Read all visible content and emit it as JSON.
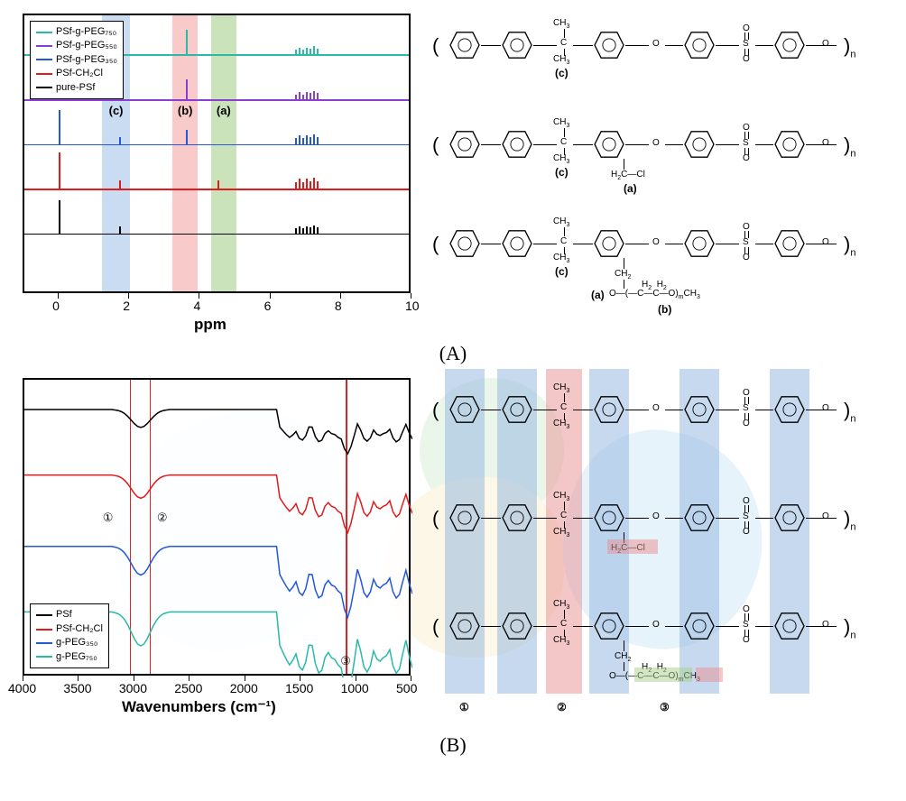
{
  "panelA": {
    "label": "(A)",
    "nmr": {
      "type": "nmr-spectra",
      "xlabel": "ppm",
      "xlim": [
        -1,
        10
      ],
      "xticks": [
        0,
        2,
        4,
        6,
        8,
        10
      ],
      "plot_bg": "#ffffff",
      "border_color": "#000000",
      "bands": [
        {
          "id": "a",
          "label": "(a)",
          "x_from": 4.3,
          "x_to": 5.0,
          "color": "#a8d08d"
        },
        {
          "id": "b",
          "label": "(b)",
          "x_from": 3.2,
          "x_to": 3.9,
          "color": "#f4a6a6"
        },
        {
          "id": "c",
          "label": "(c)",
          "x_from": 1.2,
          "x_to": 2.0,
          "color": "#a6c4e8"
        }
      ],
      "series": [
        {
          "name": "PSf-g-PEG₇₅₀",
          "color": "#2bb9a8",
          "baseline_y": 0.86,
          "peaks": [
            {
              "x": 7.2,
              "h": 0.03
            },
            {
              "x": 7.0,
              "h": 0.025
            },
            {
              "x": 6.8,
              "h": 0.025
            },
            {
              "x": 3.6,
              "h": 0.09
            },
            {
              "x": 1.7,
              "h": 0.02
            },
            {
              "x": 0.0,
              "h": 0.12
            }
          ]
        },
        {
          "name": "PSf-g-PEG₅₅₀",
          "color": "#8b3fd1",
          "baseline_y": 0.7,
          "peaks": [
            {
              "x": 7.2,
              "h": 0.03
            },
            {
              "x": 7.0,
              "h": 0.025
            },
            {
              "x": 6.8,
              "h": 0.025
            },
            {
              "x": 3.6,
              "h": 0.07
            },
            {
              "x": 1.7,
              "h": 0.02
            },
            {
              "x": 0.0,
              "h": 0.12
            }
          ]
        },
        {
          "name": "PSf-g-PEG₃₅₀",
          "color": "#2458d6",
          "baseline_y": 0.54,
          "peaks": [
            {
              "x": 7.2,
              "h": 0.035
            },
            {
              "x": 7.0,
              "h": 0.03
            },
            {
              "x": 6.8,
              "h": 0.03
            },
            {
              "x": 3.6,
              "h": 0.05
            },
            {
              "x": 1.7,
              "h": 0.025
            },
            {
              "x": 0.0,
              "h": 0.12
            }
          ]
        },
        {
          "name": "PSf-CH₂Cl",
          "color": "#e01b1b",
          "baseline_y": 0.38,
          "peaks": [
            {
              "x": 7.2,
              "h": 0.04
            },
            {
              "x": 7.0,
              "h": 0.035
            },
            {
              "x": 6.8,
              "h": 0.035
            },
            {
              "x": 4.5,
              "h": 0.03
            },
            {
              "x": 1.7,
              "h": 0.03
            },
            {
              "x": 0.0,
              "h": 0.13
            }
          ]
        },
        {
          "name": "pure-PSf",
          "color": "#000000",
          "baseline_y": 0.22,
          "peaks": [
            {
              "x": 7.2,
              "h": 0.03
            },
            {
              "x": 7.0,
              "h": 0.025
            },
            {
              "x": 6.8,
              "h": 0.025
            },
            {
              "x": 1.7,
              "h": 0.025
            },
            {
              "x": 0.0,
              "h": 0.12
            }
          ]
        }
      ],
      "legend_pos": "top-left"
    },
    "structures": {
      "labels": {
        "a": "(a)",
        "b": "(b)",
        "c": "(c)"
      },
      "groups": {
        "ch3": "CH₃",
        "h2c_cl": "H₂C—Cl",
        "ch2": "CH₂",
        "o": "O",
        "s": "S",
        "peg": "O—(—C—C—O)ₘCH₃",
        "h2_h2": "H₂  H₂"
      }
    }
  },
  "panelB": {
    "label": "(B)",
    "ftir": {
      "type": "ftir-spectra",
      "xlabel": "Wavenumbers (cm⁻¹)",
      "xlim": [
        4000,
        500
      ],
      "xticks": [
        4000,
        3500,
        3000,
        2500,
        2000,
        1500,
        1000,
        500
      ],
      "plot_bg": "#ffffff",
      "border_color": "#000000",
      "vlines": [
        {
          "id": "1",
          "label": "①",
          "x": 3050,
          "color": "#d82626"
        },
        {
          "id": "2",
          "label": "②",
          "x": 2870,
          "color": "#d82626"
        },
        {
          "id": "3",
          "label": "③",
          "x": 1100,
          "color": "#d82626"
        }
      ],
      "series": [
        {
          "name": "PSf",
          "color": "#000000",
          "baseline_y": 0.9
        },
        {
          "name": "PSf-CH₂Cl",
          "color": "#e01b1b",
          "baseline_y": 0.68
        },
        {
          "name": "g-PEG₃₅₀",
          "color": "#2458d6",
          "baseline_y": 0.44
        },
        {
          "name": "g-PEG₇₅₀",
          "color": "#2bb9a8",
          "baseline_y": 0.22
        }
      ],
      "legend_pos": "bottom-left"
    },
    "structures": {
      "overlays": [
        {
          "id": "1",
          "label": "①",
          "color": "#8fb4de"
        },
        {
          "id": "2",
          "label": "②",
          "color": "#e89090"
        },
        {
          "id": "3",
          "label": "③",
          "color": "#a8d08d"
        }
      ],
      "groups": {
        "ch3": "CH₃",
        "h2c_cl": "H₂C—Cl",
        "ch2": "CH₂",
        "o": "O",
        "peg_frag": "—C—C—O—",
        "ch3_end": "CH₃",
        "h2_h2": "H₂  H₂"
      }
    }
  },
  "watermark": {
    "colors": {
      "blue": "#3fa0d8",
      "green": "#5fb85f",
      "yellow": "#f0c040"
    }
  }
}
